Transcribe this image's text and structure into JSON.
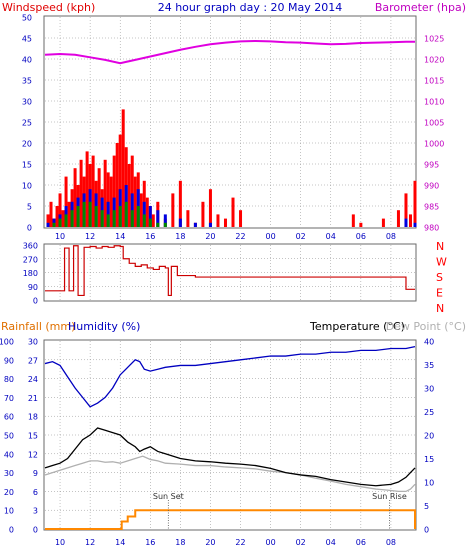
{
  "chart_data": [
    {
      "type": "line",
      "title": "24 hour graph day : 20 May 2014",
      "left_axis_label": "Windspeed (kph)",
      "right_axis_label": "Barometer (hpa)",
      "left_ylim": [
        0,
        50
      ],
      "left_ticks": [
        "0",
        "5",
        "10",
        "15",
        "20",
        "25",
        "30",
        "35",
        "40",
        "45",
        "50"
      ],
      "right_ylim": [
        980,
        1030
      ],
      "right_ticks": [
        "980",
        "985",
        "990",
        "995",
        "1000",
        "1005",
        "1010",
        "1015",
        "1020",
        "1025"
      ],
      "x_ticks": [
        "10",
        "12",
        "14",
        "16",
        "18",
        "20",
        "22",
        "00",
        "02",
        "04",
        "06",
        "08"
      ],
      "colors": {
        "barometer": "#e000e0",
        "wind_gust": "#ff0000",
        "wind_avg": "#0000e0",
        "wind_low": "#008800",
        "title": "#0000c0",
        "left_label": "#e00000",
        "right_label": "#c000c0"
      },
      "series": [
        {
          "key": "barometer",
          "x": [
            9,
            10,
            11,
            12,
            13,
            14,
            15,
            16,
            17,
            18,
            19,
            20,
            21,
            22,
            23,
            24,
            25,
            26,
            27,
            28,
            29,
            30,
            31,
            32,
            33,
            33.6
          ],
          "values": [
            1021,
            1021.2,
            1021,
            1020.4,
            1019.8,
            1019,
            1019.8,
            1020.6,
            1021.4,
            1022.2,
            1022.9,
            1023.5,
            1023.9,
            1024.2,
            1024.3,
            1024.2,
            1024,
            1023.9,
            1023.7,
            1023.5,
            1023.6,
            1023.8,
            1023.9,
            1024,
            1024.1,
            1024.1
          ]
        },
        {
          "key": "wind_gust",
          "x": [
            9.2,
            9.4,
            9.6,
            9.8,
            10,
            10.2,
            10.4,
            10.6,
            10.8,
            11,
            11.2,
            11.4,
            11.6,
            11.8,
            12,
            12.2,
            12.4,
            12.6,
            12.8,
            13,
            13.2,
            13.4,
            13.6,
            13.8,
            14,
            14.2,
            14.4,
            14.6,
            14.8,
            15,
            15.2,
            15.4,
            15.6,
            15.8,
            16,
            16.2,
            16.5,
            17,
            17.5,
            18,
            18.5,
            19,
            19.5,
            20,
            20.5,
            21,
            21.5,
            22,
            22.2,
            23,
            25,
            27,
            29,
            29.5,
            30,
            31,
            31.5,
            32,
            32.5,
            33,
            33.3,
            33.6
          ],
          "values": [
            3,
            6,
            2,
            5,
            8,
            4,
            12,
            6,
            9,
            14,
            10,
            16,
            12,
            18,
            15,
            17,
            11,
            14,
            9,
            16,
            13,
            12,
            17,
            20,
            22,
            28,
            19,
            15,
            17,
            12,
            13,
            8,
            11,
            7,
            5,
            3,
            6,
            2,
            8,
            11,
            4,
            1,
            6,
            9,
            3,
            2,
            7,
            4,
            0,
            0,
            0,
            0,
            0,
            3,
            1,
            0,
            2,
            0,
            4,
            8,
            3,
            11
          ]
        },
        {
          "key": "wind_avg",
          "x": [
            9.2,
            9.6,
            10,
            10.4,
            10.8,
            11.2,
            11.6,
            12,
            12.4,
            12.8,
            13.2,
            13.6,
            14,
            14.4,
            14.8,
            15.2,
            15.6,
            16,
            16.5,
            17,
            18,
            19,
            20,
            21,
            22,
            23,
            25,
            27,
            29,
            30,
            31,
            32,
            33,
            33.6
          ],
          "values": [
            1,
            2,
            3,
            5,
            6,
            7,
            8,
            9,
            8,
            7,
            6,
            7,
            9,
            10,
            8,
            9,
            6,
            5,
            4,
            3,
            2,
            1,
            1,
            0,
            0,
            0,
            0,
            0,
            0,
            0,
            0,
            0,
            2,
            1
          ]
        },
        {
          "key": "wind_low",
          "x": [
            9.2,
            9.6,
            10,
            10.4,
            10.8,
            11.2,
            11.6,
            12,
            12.4,
            12.8,
            13.2,
            13.6,
            14,
            14.4,
            14.8,
            15.2,
            15.6,
            16,
            16.5,
            17,
            18,
            19,
            20,
            21,
            22,
            23,
            25,
            27,
            29,
            30,
            31,
            32,
            33,
            33.6
          ],
          "values": [
            0,
            1,
            2,
            3,
            4,
            5,
            6,
            6,
            5,
            4,
            3,
            4,
            5,
            6,
            4,
            5,
            3,
            2,
            1,
            1,
            0,
            0,
            0,
            0,
            0,
            0,
            0,
            0,
            0,
            0,
            0,
            0,
            0,
            0
          ]
        }
      ]
    },
    {
      "type": "line",
      "ylim": [
        0,
        360
      ],
      "left_ticks": [
        "0",
        "90",
        "180",
        "270",
        "360"
      ],
      "direction_labels": [
        "N",
        "W",
        "S",
        "E",
        "N"
      ],
      "x_ticks": [
        "10",
        "12",
        "14",
        "16",
        "18",
        "20",
        "22",
        "00",
        "02",
        "04",
        "06",
        "08"
      ],
      "colors": {
        "direction": "#cc0000",
        "labels": "#ff0000"
      },
      "series": [
        {
          "key": "wind_direction",
          "x": [
            9,
            10,
            10.3,
            10.6,
            10.9,
            11.2,
            11.6,
            12,
            12.4,
            12.8,
            13.2,
            13.6,
            14,
            14.2,
            14.6,
            15,
            15.4,
            15.8,
            16.2,
            16.6,
            17,
            17.2,
            17.4,
            17.8,
            18.2,
            19,
            20,
            21,
            22,
            23,
            24,
            25,
            26,
            27,
            28,
            29,
            30,
            31,
            32,
            33,
            33.6
          ],
          "values": [
            60,
            60,
            340,
            60,
            355,
            30,
            345,
            350,
            340,
            350,
            345,
            355,
            350,
            270,
            240,
            220,
            230,
            210,
            200,
            220,
            210,
            30,
            220,
            160,
            160,
            150,
            150,
            150,
            150,
            150,
            150,
            150,
            150,
            150,
            150,
            150,
            150,
            150,
            150,
            70,
            70
          ]
        }
      ]
    },
    {
      "type": "line",
      "rain_label": "Rainfall (mm)",
      "humidity_label": "Humidity (%)",
      "temperature_label": "Temperature (°C)",
      "dewpoint_label": "Dew Point (°C)",
      "humidity_ticks": [
        "0",
        "10",
        "20",
        "30",
        "40",
        "50",
        "60",
        "70",
        "80",
        "90",
        "100"
      ],
      "rain_ticks": [
        "0",
        "3",
        "6",
        "9",
        "12",
        "15",
        "18",
        "21",
        "24",
        "27",
        "30"
      ],
      "temp_ticks": [
        "0",
        "5",
        "10",
        "15",
        "20",
        "25",
        "30",
        "35",
        "40"
      ],
      "humidity_ylim": [
        0,
        100
      ],
      "rain_ylim": [
        0,
        30
      ],
      "temp_ylim": [
        0,
        40
      ],
      "x_ticks": [
        "10",
        "12",
        "14",
        "16",
        "18",
        "20",
        "22",
        "00",
        "02",
        "04",
        "06",
        "08"
      ],
      "annotations": [
        {
          "text": "Sun Set",
          "x": 17.2
        },
        {
          "text": "Sun Rise",
          "x": 31.9
        }
      ],
      "colors": {
        "humidity": "#0000c0",
        "temperature": "#000000",
        "dewpoint": "#b0b0b0",
        "rain": "#ff8800",
        "rain_label": "#e07000",
        "humidity_label": "#0000c0",
        "temperature_label": "#000000",
        "dewpoint_label": "#b0b0b0"
      },
      "series": [
        {
          "key": "humidity",
          "x": [
            9,
            9.5,
            10,
            10.5,
            11,
            11.5,
            12,
            12.5,
            13,
            13.5,
            14,
            14.5,
            15,
            15.3,
            15.6,
            16,
            16.5,
            17,
            18,
            19,
            20,
            21,
            22,
            23,
            24,
            25,
            26,
            27,
            28,
            29,
            30,
            31,
            32,
            33,
            33.6
          ],
          "values": [
            88,
            89,
            87,
            81,
            75,
            70,
            65,
            67,
            70,
            75,
            82,
            86,
            90,
            89,
            85,
            84,
            85,
            86,
            87,
            87,
            88,
            89,
            90,
            91,
            92,
            92,
            93,
            93,
            94,
            94,
            95,
            95,
            96,
            96,
            97
          ]
        },
        {
          "key": "temperature",
          "x": [
            9,
            9.5,
            10,
            10.5,
            11,
            11.5,
            12,
            12.5,
            13,
            13.5,
            14,
            14.5,
            15,
            15.3,
            15.6,
            16,
            16.5,
            17,
            18,
            19,
            20,
            21,
            22,
            23,
            24,
            25,
            26,
            27,
            28,
            29,
            30,
            31,
            32,
            32.5,
            33,
            33.3,
            33.6
          ],
          "values": [
            13,
            13.5,
            14,
            15,
            17,
            19,
            20,
            21.5,
            21,
            20.5,
            20,
            18.5,
            17.5,
            16.5,
            17,
            17.5,
            16.5,
            16,
            15,
            14.5,
            14.3,
            14,
            13.8,
            13.5,
            12.9,
            12,
            11.5,
            11.2,
            10.5,
            10,
            9.5,
            9.2,
            9.5,
            10,
            11,
            12,
            13
          ]
        },
        {
          "key": "dewpoint",
          "x": [
            9,
            9.5,
            10,
            10.5,
            11,
            11.5,
            12,
            12.5,
            13,
            13.5,
            14,
            14.5,
            15,
            15.5,
            16,
            16.5,
            17,
            18,
            19,
            20,
            21,
            22,
            23,
            24,
            25,
            26,
            27,
            28,
            29,
            30,
            31,
            32,
            32.5,
            33,
            33.3,
            33.6
          ],
          "values": [
            11.5,
            12,
            12.5,
            13,
            13.5,
            14,
            14.5,
            14.5,
            14.2,
            14.3,
            14,
            14.5,
            15,
            15.5,
            14.8,
            14.5,
            14,
            13.8,
            13.5,
            13.5,
            13.2,
            13,
            12.8,
            12.3,
            12,
            11.5,
            10.8,
            10.2,
            9.5,
            9,
            8.5,
            8.2,
            8,
            8,
            8.5,
            9.5
          ]
        },
        {
          "key": "rain",
          "x": [
            9,
            10,
            11,
            12,
            13,
            13.9,
            14.1,
            14.5,
            15,
            16,
            18,
            20,
            22,
            24,
            26,
            28,
            30,
            32,
            33,
            33.5,
            33.6
          ],
          "values": [
            0,
            0,
            0,
            0,
            0,
            0,
            1.2,
            2,
            3,
            3,
            3,
            3,
            3,
            3,
            3,
            3,
            3,
            3,
            3,
            3,
            0
          ]
        }
      ]
    }
  ]
}
